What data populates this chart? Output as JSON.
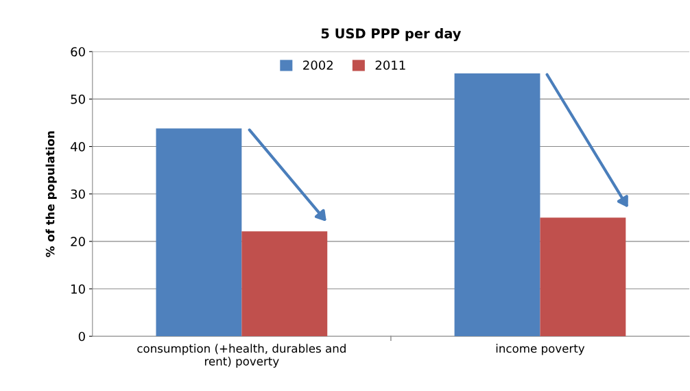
{
  "chart_data": {
    "type": "bar",
    "title": "5 USD PPP per day",
    "ylabel": "% of the population",
    "categories": [
      "consumption (+health, durables and\nrent) poverty",
      "income poverty"
    ],
    "series": [
      {
        "name": "2002",
        "color": "#4f81bd",
        "values": [
          43.8,
          55.4
        ]
      },
      {
        "name": "2011",
        "color": "#c0504d",
        "values": [
          22.1,
          25.0
        ]
      }
    ],
    "ylim": [
      0,
      60
    ],
    "yticks": [
      0,
      10,
      20,
      30,
      40,
      50,
      60
    ],
    "grid": "y",
    "legend": "top"
  }
}
